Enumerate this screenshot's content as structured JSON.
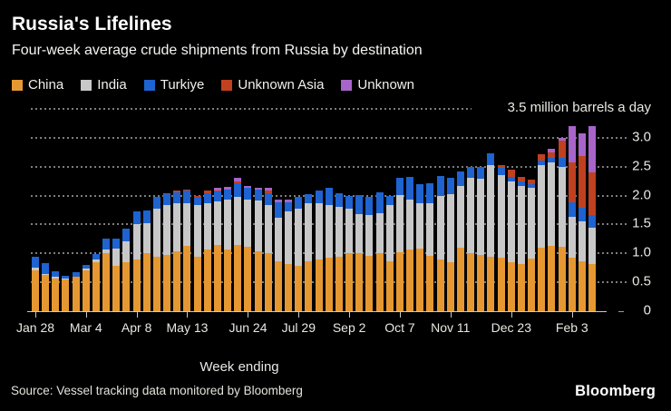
{
  "footer": {
    "source": "Source: Vessel tracking data monitored by Bloomberg",
    "logo": "Bloomberg"
  },
  "chart_data": {
    "type": "bar",
    "stacked": true,
    "title": "Russia's Lifelines",
    "subtitle": "Four-week average crude shipments from Russia by destination",
    "unit_label": "3.5 million barrels a day",
    "xlabel": "Week ending",
    "ylim": [
      0,
      3.5
    ],
    "grid": true,
    "legend_position": "top",
    "ytick_values": [
      0,
      0.5,
      1,
      1.5,
      2,
      2.5,
      3
    ],
    "ytick_labels": [
      "0",
      "0.5",
      "1.0",
      "1.5",
      "2.0",
      "2.5",
      "3.0"
    ],
    "grid_values": [
      0.5,
      1,
      1.5,
      2,
      2.5,
      3,
      3.5
    ],
    "xtick_labels": [
      "Jan 28",
      "Mar 4",
      "Apr 8",
      "May 13",
      "Jun 24",
      "Jul 29",
      "Sep 2",
      "Oct 7",
      "Nov 11",
      "Dec 23",
      "Feb 3"
    ],
    "xtick_indices": [
      0,
      5,
      10,
      15,
      21,
      26,
      31,
      36,
      41,
      47,
      53
    ],
    "categories": [
      "Jan 28",
      "Feb 4",
      "Feb 11",
      "Feb 18",
      "Feb 25",
      "Mar 4",
      "Mar 11",
      "Mar 18",
      "Mar 25",
      "Apr 1",
      "Apr 8",
      "Apr 15",
      "Apr 22",
      "Apr 29",
      "May 6",
      "May 13",
      "May 20",
      "May 27",
      "Jun 3",
      "Jun 10",
      "Jun 17",
      "Jun 24",
      "Jul 1",
      "Jul 8",
      "Jul 15",
      "Jul 22",
      "Jul 29",
      "Aug 5",
      "Aug 12",
      "Aug 19",
      "Aug 26",
      "Sep 2",
      "Sep 9",
      "Sep 16",
      "Sep 23",
      "Sep 30",
      "Oct 7",
      "Oct 14",
      "Oct 21",
      "Oct 28",
      "Nov 4",
      "Nov 11",
      "Nov 18",
      "Nov 25",
      "Dec 2",
      "Dec 9",
      "Dec 16",
      "Dec 23",
      "Dec 30",
      "Jan 6",
      "Jan 13",
      "Jan 20",
      "Jan 27",
      "Feb 3",
      "Feb 10",
      "Feb 17"
    ],
    "series": [
      {
        "name": "China",
        "color": "#E59832",
        "values": [
          0.7,
          0.62,
          0.57,
          0.55,
          0.6,
          0.71,
          0.84,
          1.0,
          0.79,
          0.85,
          0.89,
          1.0,
          0.94,
          0.97,
          1.04,
          1.13,
          0.94,
          1.07,
          1.14,
          1.06,
          1.15,
          1.11,
          1.04,
          1.01,
          0.86,
          0.81,
          0.79,
          0.87,
          0.9,
          0.92,
          0.94,
          1.01,
          1.0,
          0.95,
          1.01,
          0.87,
          1.02,
          1.06,
          1.08,
          0.95,
          0.89,
          0.85,
          1.1,
          1.01,
          0.97,
          0.94,
          0.92,
          0.84,
          0.82,
          0.91,
          1.1,
          1.13,
          1.12,
          0.93,
          0.87,
          0.82
        ]
      },
      {
        "name": "India",
        "color": "#C8C8C8",
        "values": [
          0.05,
          0.03,
          0.02,
          0.01,
          0.0,
          0.02,
          0.05,
          0.07,
          0.29,
          0.36,
          0.62,
          0.53,
          0.83,
          0.87,
          0.83,
          0.73,
          0.89,
          0.8,
          0.76,
          0.87,
          0.83,
          0.82,
          0.87,
          0.82,
          0.76,
          0.91,
          0.99,
          0.99,
          0.96,
          0.91,
          0.87,
          0.77,
          0.68,
          0.71,
          0.69,
          0.96,
          0.99,
          0.87,
          0.79,
          0.91,
          1.1,
          1.17,
          1.06,
          1.3,
          1.32,
          1.58,
          1.44,
          1.4,
          1.35,
          1.22,
          1.43,
          1.45,
          1.38,
          0.7,
          0.68,
          0.62
        ]
      },
      {
        "name": "Turkiye",
        "color": "#1E63D0",
        "values": [
          0.19,
          0.18,
          0.1,
          0.05,
          0.08,
          0.07,
          0.1,
          0.19,
          0.18,
          0.22,
          0.21,
          0.21,
          0.2,
          0.18,
          0.19,
          0.22,
          0.15,
          0.17,
          0.17,
          0.18,
          0.24,
          0.2,
          0.19,
          0.21,
          0.26,
          0.16,
          0.19,
          0.17,
          0.22,
          0.3,
          0.23,
          0.22,
          0.33,
          0.32,
          0.35,
          0.17,
          0.3,
          0.39,
          0.32,
          0.36,
          0.35,
          0.28,
          0.26,
          0.18,
          0.2,
          0.21,
          0.12,
          0.08,
          0.08,
          0.07,
          0.07,
          0.08,
          0.15,
          0.26,
          0.24,
          0.22
        ]
      },
      {
        "name": "Unknown Asia",
        "color": "#C04120",
        "values": [
          0,
          0,
          0,
          0,
          0,
          0,
          0,
          0,
          0,
          0,
          0,
          0,
          0,
          0.02,
          0.03,
          0.02,
          0.02,
          0.04,
          0.02,
          0,
          0.03,
          0,
          0,
          0.04,
          0,
          0,
          0,
          0,
          0,
          0,
          0,
          0,
          0,
          0,
          0,
          0,
          0,
          0,
          0,
          0,
          0,
          0,
          0,
          0,
          0,
          0,
          0.04,
          0.13,
          0.07,
          0.08,
          0.12,
          0.08,
          0.3,
          0.68,
          0.89,
          0.74
        ]
      },
      {
        "name": "Unknown",
        "color": "#A765C9",
        "values": [
          0,
          0,
          0,
          0,
          0,
          0,
          0,
          0,
          0,
          0,
          0,
          0,
          0,
          0,
          0,
          0,
          0,
          0,
          0.04,
          0.04,
          0.05,
          0.04,
          0.03,
          0.05,
          0.05,
          0.05,
          0,
          0,
          0,
          0,
          0,
          0,
          0,
          0,
          0,
          0,
          0,
          0,
          0,
          0,
          0,
          0,
          0,
          0,
          0,
          0,
          0,
          0,
          0,
          0,
          0,
          0.07,
          0.05,
          0.63,
          0.39,
          0.8
        ]
      }
    ]
  }
}
